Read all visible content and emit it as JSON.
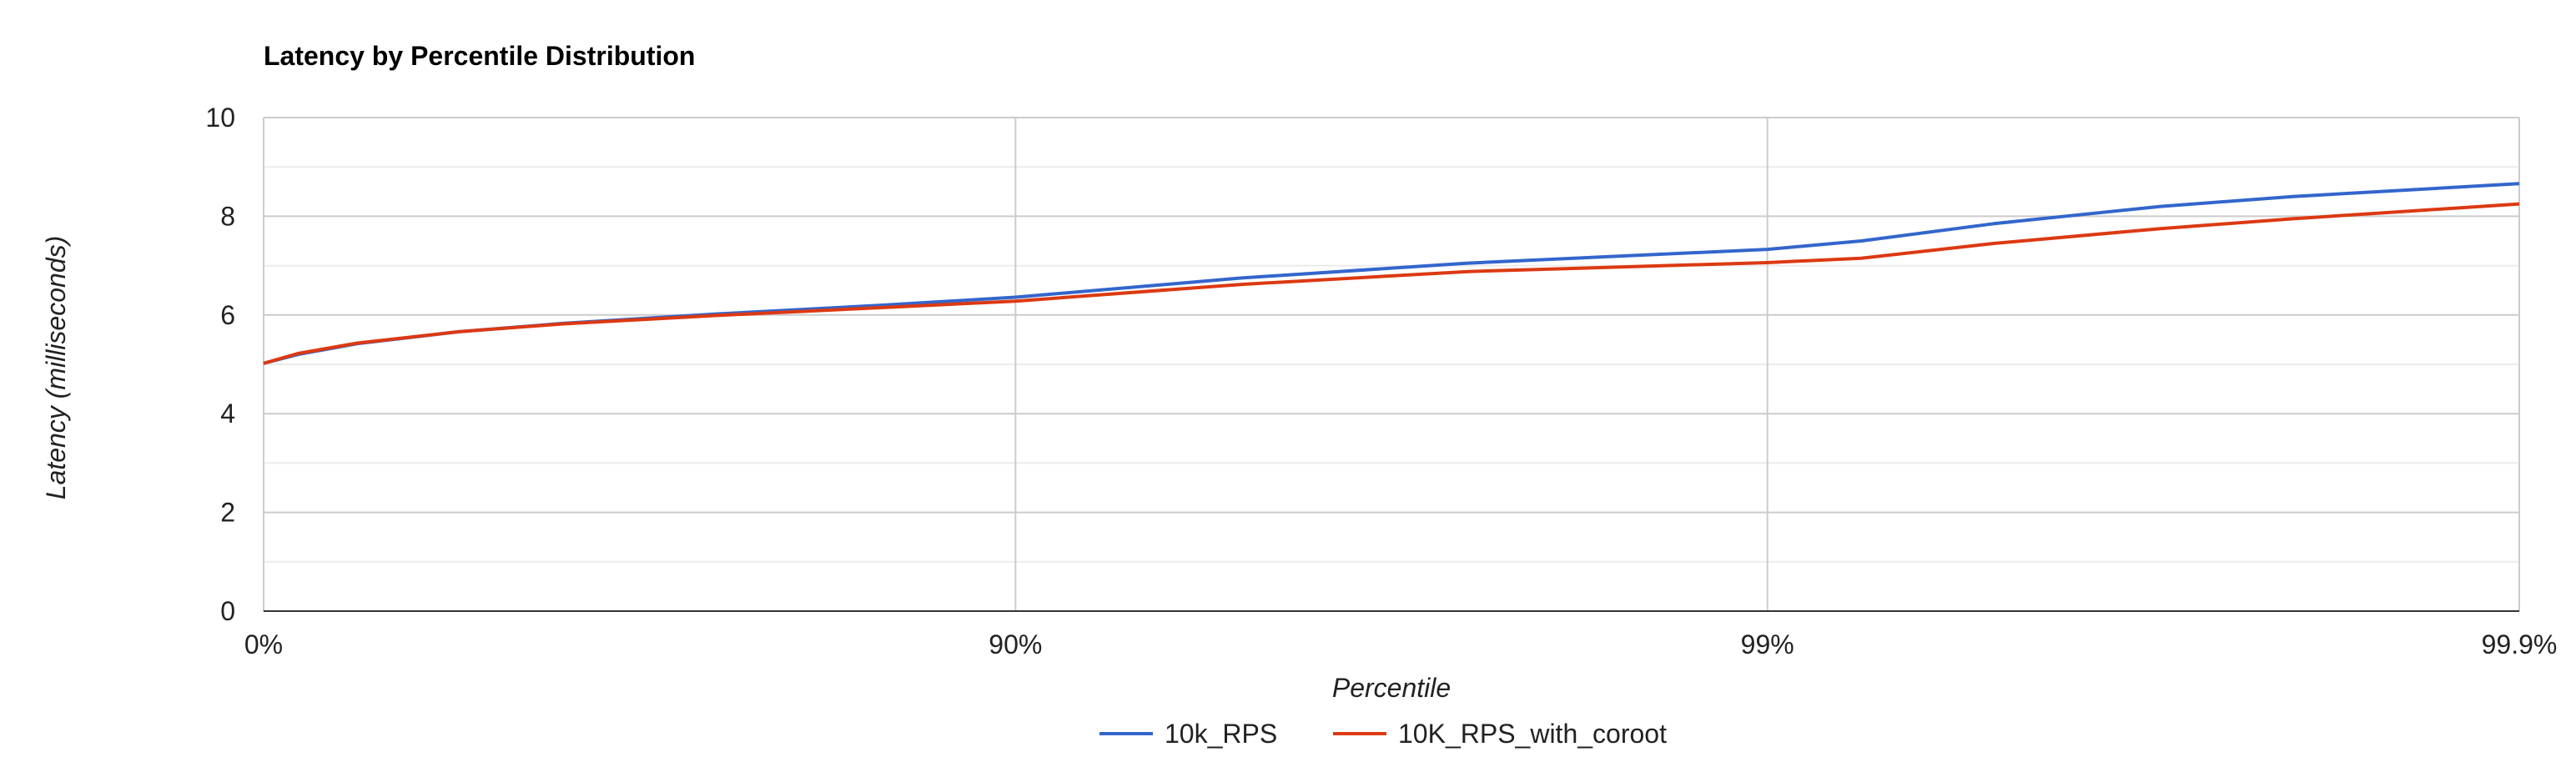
{
  "chart_data": {
    "type": "line",
    "title": "Latency by Percentile Distribution",
    "xlabel": "Percentile",
    "ylabel": "Latency (milliseconds)",
    "x_ticks": [
      "0%",
      "90%",
      "99%",
      "99.9%"
    ],
    "x_scale": "log-percentile",
    "y_ticks": [
      "0",
      "2",
      "4",
      "6",
      "8",
      "10"
    ],
    "ylim": [
      0,
      10
    ],
    "grid": true,
    "legend_position": "bottom",
    "series": [
      {
        "name": "10k_RPS",
        "color": "#3366cc",
        "points": [
          {
            "x": 0,
            "y": 5.02
          },
          {
            "x": 10,
            "y": 5.2
          },
          {
            "x": 25,
            "y": 5.42
          },
          {
            "x": 45,
            "y": 5.66
          },
          {
            "x": 60,
            "y": 5.83
          },
          {
            "x": 75,
            "y": 6.02
          },
          {
            "x": 85,
            "y": 6.2
          },
          {
            "x": 90,
            "y": 6.36
          },
          {
            "x": 95,
            "y": 6.75
          },
          {
            "x": 97.5,
            "y": 7.05
          },
          {
            "x": 99,
            "y": 7.33
          },
          {
            "x": 99.25,
            "y": 7.5
          },
          {
            "x": 99.5,
            "y": 7.85
          },
          {
            "x": 99.7,
            "y": 8.2
          },
          {
            "x": 99.8,
            "y": 8.4
          },
          {
            "x": 99.9,
            "y": 8.66
          }
        ]
      },
      {
        "name": "10K_RPS_with_coroot",
        "color": "#dc3912",
        "points": [
          {
            "x": 0,
            "y": 5.02
          },
          {
            "x": 10,
            "y": 5.22
          },
          {
            "x": 25,
            "y": 5.43
          },
          {
            "x": 45,
            "y": 5.66
          },
          {
            "x": 60,
            "y": 5.82
          },
          {
            "x": 75,
            "y": 5.99
          },
          {
            "x": 85,
            "y": 6.15
          },
          {
            "x": 90,
            "y": 6.28
          },
          {
            "x": 95,
            "y": 6.62
          },
          {
            "x": 97.5,
            "y": 6.88
          },
          {
            "x": 99,
            "y": 7.06
          },
          {
            "x": 99.25,
            "y": 7.15
          },
          {
            "x": 99.5,
            "y": 7.45
          },
          {
            "x": 99.7,
            "y": 7.75
          },
          {
            "x": 99.8,
            "y": 7.95
          },
          {
            "x": 99.9,
            "y": 8.25
          }
        ]
      }
    ]
  }
}
